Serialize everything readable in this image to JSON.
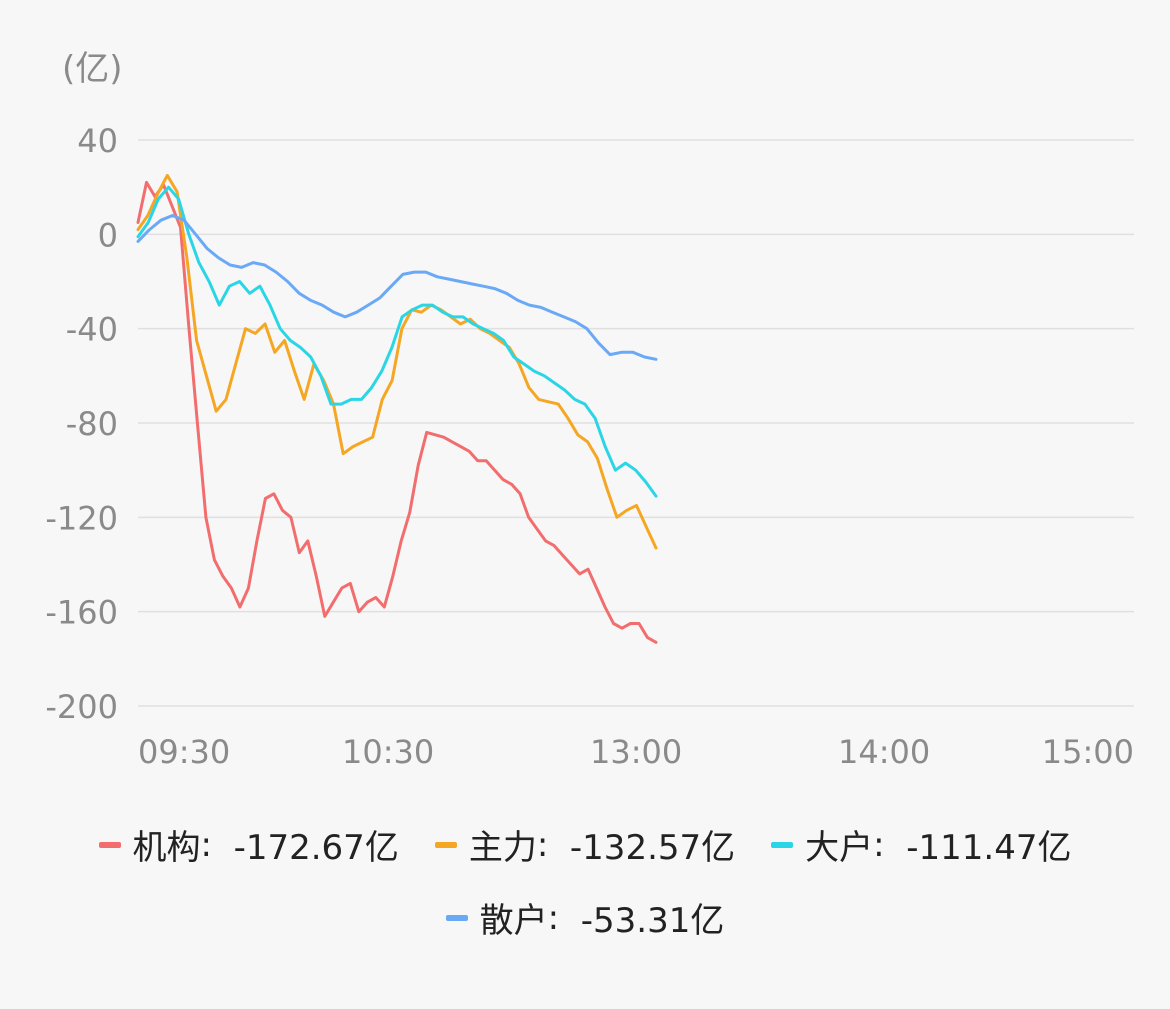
{
  "chart_data": {
    "type": "line",
    "unit_label": "(亿)",
    "ylim": [
      -200,
      40
    ],
    "y_ticks": [
      "40",
      "0",
      "-40",
      "-80",
      "-120",
      "-160",
      "-200"
    ],
    "y_tick_values": [
      40,
      0,
      -40,
      -80,
      -120,
      -160,
      -200
    ],
    "x_ticks": [
      "09:30",
      "10:30",
      "13:00",
      "14:00",
      "15:00"
    ],
    "grid": true,
    "legend_position": "bottom",
    "series": [
      {
        "name": "机构",
        "legend_value": "-172.67亿",
        "color": "#f26d6d",
        "values": [
          5,
          22,
          16,
          21,
          12,
          3,
          -40,
          -80,
          -120,
          -138,
          -145,
          -150,
          -158,
          -150,
          -130,
          -112,
          -110,
          -117,
          -120,
          -135,
          -130,
          -145,
          -162,
          -156,
          -150,
          -148,
          -160,
          -156,
          -154,
          -158,
          -145,
          -130,
          -118,
          -98,
          -84,
          -85,
          -86,
          -88,
          -90,
          -92,
          -96,
          -96,
          -100,
          -104,
          -106,
          -110,
          -120,
          -125,
          -130,
          -132,
          -136,
          -140,
          -144,
          -142,
          -150,
          -158,
          -165,
          -167,
          -165,
          -165,
          -171,
          -173
        ]
      },
      {
        "name": "主力",
        "legend_value": "-132.57亿",
        "color": "#f5a623",
        "values": [
          2,
          8,
          17,
          25,
          18,
          -10,
          -45,
          -60,
          -75,
          -70,
          -55,
          -40,
          -42,
          -38,
          -50,
          -45,
          -58,
          -70,
          -55,
          -62,
          -72,
          -93,
          -90,
          -88,
          -86,
          -70,
          -62,
          -40,
          -32,
          -33,
          -30,
          -32,
          -35,
          -38,
          -36,
          -40,
          -42,
          -45,
          -48,
          -55,
          -65,
          -70,
          -71,
          -72,
          -78,
          -85,
          -88,
          -95,
          -108,
          -120,
          -117,
          -115,
          -124,
          -133
        ]
      },
      {
        "name": "大户",
        "legend_value": "-111.47亿",
        "color": "#2ad6e6",
        "values": [
          -1,
          5,
          15,
          20,
          15,
          0,
          -12,
          -20,
          -30,
          -22,
          -20,
          -25,
          -22,
          -30,
          -40,
          -45,
          -48,
          -52,
          -60,
          -72,
          -72,
          -70,
          -70,
          -65,
          -58,
          -48,
          -35,
          -32,
          -30,
          -30,
          -33,
          -35,
          -35,
          -38,
          -40,
          -42,
          -45,
          -52,
          -55,
          -58,
          -60,
          -63,
          -66,
          -70,
          -72,
          -78,
          -90,
          -100,
          -97,
          -100,
          -105,
          -111
        ]
      },
      {
        "name": "散户",
        "legend_value": "-53.31亿",
        "color": "#6aa9f5",
        "values": [
          -3,
          2,
          6,
          8,
          6,
          0,
          -6,
          -10,
          -13,
          -14,
          -12,
          -13,
          -16,
          -20,
          -25,
          -28,
          -30,
          -33,
          -35,
          -33,
          -30,
          -27,
          -22,
          -17,
          -16,
          -16,
          -18,
          -19,
          -20,
          -21,
          -22,
          -23,
          -25,
          -28,
          -30,
          -31,
          -33,
          -35,
          -37,
          -40,
          -46,
          -51,
          -50,
          -50,
          -52,
          -53
        ]
      }
    ]
  }
}
